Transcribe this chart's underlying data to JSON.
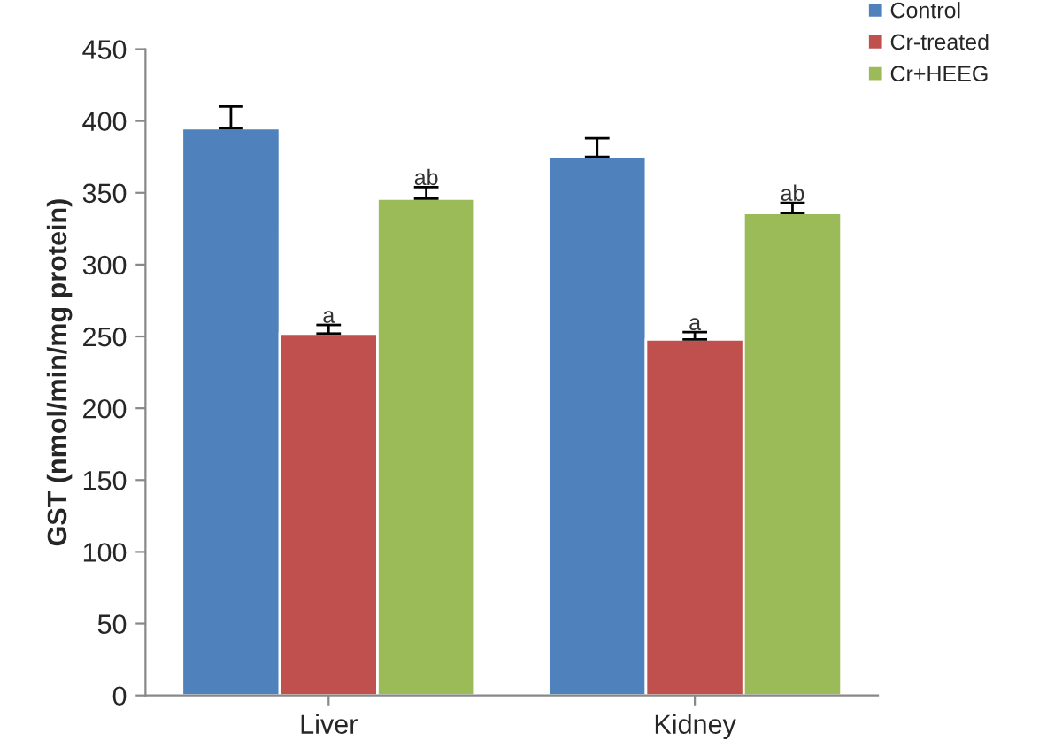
{
  "chart_data": {
    "type": "bar",
    "ylabel": "GST (nmol/min/mg protein)",
    "categories": [
      "Liver",
      "Kidney"
    ],
    "series": [
      {
        "name": "Control",
        "color": "#4f81bd",
        "values": [
          395,
          375
        ],
        "errors": [
          [
            395,
            410
          ],
          [
            375,
            388
          ]
        ]
      },
      {
        "name": "Cr-treated",
        "color": "#c0504d",
        "values": [
          252,
          248
        ],
        "errors": [
          [
            252,
            258
          ],
          [
            248,
            253
          ]
        ]
      },
      {
        "name": "Cr+HEEG",
        "color": "#9bbb59",
        "values": [
          346,
          336
        ],
        "errors": [
          [
            346,
            354
          ],
          [
            336,
            343
          ]
        ]
      }
    ],
    "annotations": [
      {
        "text": "a",
        "x": "Liver",
        "y": 252
      },
      "ab",
      {
        "text": "a",
        "x": "Kidney",
        "y": 248
      },
      "ab"
    ],
    "ylim": [
      0,
      450
    ],
    "yticks": [
      0,
      50,
      100,
      150,
      200,
      250,
      300,
      350,
      400,
      450
    ],
    "grid": false,
    "legend": "top right"
  }
}
